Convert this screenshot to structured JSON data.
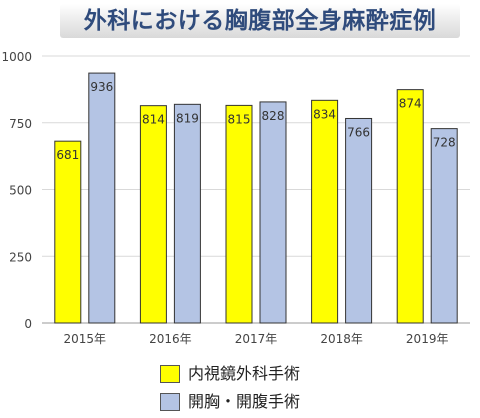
{
  "chart_data": {
    "type": "bar",
    "title": "外科における胸腹部全身麻酔症例",
    "categories": [
      "2015年",
      "2016年",
      "2017年",
      "2018年",
      "2019年"
    ],
    "series": [
      {
        "name": "内視鏡外科手術",
        "color": "#ffff00",
        "values": [
          681,
          814,
          815,
          834,
          874
        ]
      },
      {
        "name": "開胸・開腹手術",
        "color": "#b4c4e4",
        "values": [
          936,
          819,
          828,
          766,
          728
        ]
      }
    ],
    "ylim": [
      0,
      1000
    ],
    "yticks": [
      0,
      250,
      500,
      750,
      1000
    ],
    "xlabel": "",
    "ylabel": "",
    "grid": true,
    "legend": "bottom"
  }
}
